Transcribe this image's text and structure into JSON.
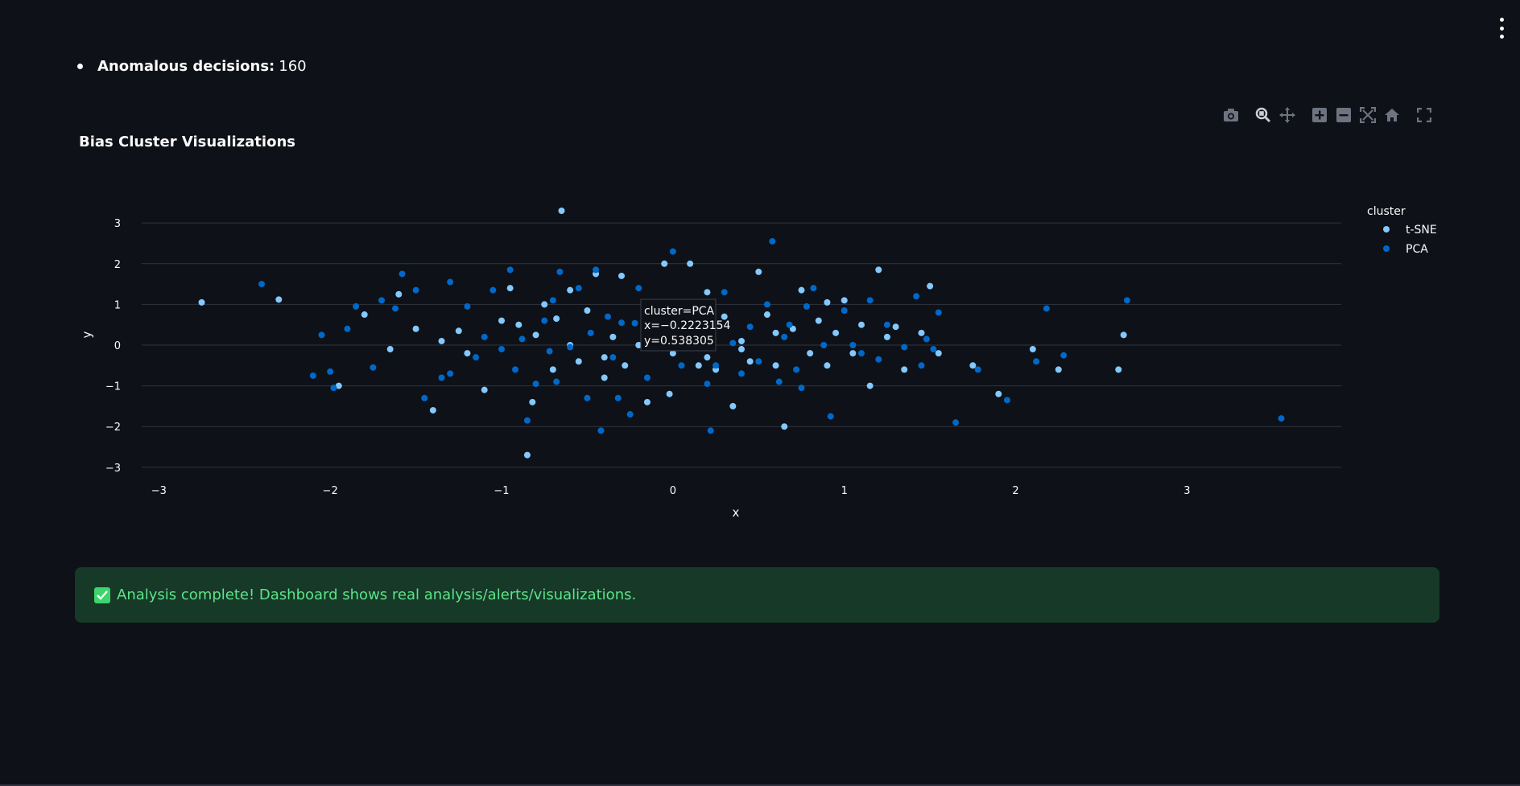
{
  "summary": {
    "label": "Anomalous decisions:",
    "value": "160"
  },
  "chart": {
    "title": "Bias Cluster Visualizations"
  },
  "modebar": {
    "icons": [
      "camera-icon",
      "zoom-icon",
      "pan-icon",
      "zoom-in-icon",
      "zoom-out-icon",
      "autoscale-icon",
      "home-icon",
      "fullscreen-icon"
    ]
  },
  "tooltip": {
    "line1": "cluster=PCA",
    "line2": "x=−0.2223154",
    "line3": "y=0.538305"
  },
  "success": {
    "icon": "check-icon",
    "text": "Analysis complete! Dashboard shows real analysis/alerts/visualizations."
  },
  "colors": {
    "background": "#0e1117",
    "tsne": "#83c9ff",
    "pca": "#0068c9",
    "success_bg": "#173928",
    "success_text": "#5ce488"
  },
  "chart_data": {
    "type": "scatter",
    "xlabel": "x",
    "ylabel": "y",
    "xlim": [
      -3.1,
      3.9
    ],
    "ylim": [
      -3.3,
      3.3
    ],
    "xticks": [
      -3,
      -2,
      -1,
      0,
      1,
      2,
      3
    ],
    "yticks": [
      -3,
      -2,
      -1,
      0,
      1,
      2,
      3
    ],
    "legend_title": "cluster",
    "legend_position": "top-right",
    "grid": true,
    "series": [
      {
        "name": "t-SNE",
        "color": "#83c9ff",
        "points": [
          [
            -2.75,
            1.05
          ],
          [
            -2.3,
            1.12
          ],
          [
            -1.95,
            -1.0
          ],
          [
            -1.8,
            0.75
          ],
          [
            -1.65,
            -0.1
          ],
          [
            -1.6,
            1.25
          ],
          [
            -1.4,
            -1.6
          ],
          [
            -1.35,
            0.1
          ],
          [
            -1.25,
            0.35
          ],
          [
            -1.1,
            -1.1
          ],
          [
            -1.0,
            0.6
          ],
          [
            -0.95,
            1.4
          ],
          [
            -0.9,
            0.5
          ],
          [
            -0.85,
            -2.7
          ],
          [
            -0.82,
            -1.4
          ],
          [
            -0.8,
            0.25
          ],
          [
            -0.75,
            1.0
          ],
          [
            -0.7,
            -0.6
          ],
          [
            -0.68,
            0.65
          ],
          [
            -0.65,
            3.3
          ],
          [
            -0.6,
            1.35
          ],
          [
            -0.55,
            -0.4
          ],
          [
            -0.5,
            0.85
          ],
          [
            -0.45,
            1.75
          ],
          [
            -0.4,
            -0.8
          ],
          [
            -0.35,
            0.2
          ],
          [
            -0.3,
            1.7
          ],
          [
            -0.28,
            -0.5
          ],
          [
            -0.2,
            0.0
          ],
          [
            -0.15,
            -1.4
          ],
          [
            -0.1,
            0.9
          ],
          [
            -0.05,
            2.0
          ],
          [
            -0.02,
            -1.2
          ],
          [
            0.05,
            0.3
          ],
          [
            0.1,
            2.0
          ],
          [
            0.15,
            -0.5
          ],
          [
            0.2,
            1.3
          ],
          [
            0.25,
            -0.6
          ],
          [
            0.3,
            0.7
          ],
          [
            0.35,
            -1.5
          ],
          [
            0.4,
            0.1
          ],
          [
            0.45,
            -0.4
          ],
          [
            0.5,
            1.8
          ],
          [
            0.55,
            0.75
          ],
          [
            0.6,
            -0.5
          ],
          [
            0.65,
            -2.0
          ],
          [
            0.7,
            0.4
          ],
          [
            0.75,
            1.35
          ],
          [
            0.8,
            -0.2
          ],
          [
            0.85,
            0.6
          ],
          [
            0.9,
            -0.5
          ],
          [
            0.95,
            0.3
          ],
          [
            1.0,
            1.1
          ],
          [
            1.05,
            -0.2
          ],
          [
            1.1,
            0.5
          ],
          [
            1.15,
            -1.0
          ],
          [
            1.2,
            1.85
          ],
          [
            1.25,
            0.2
          ],
          [
            1.3,
            0.45
          ],
          [
            1.35,
            -0.6
          ],
          [
            1.45,
            0.3
          ],
          [
            1.5,
            1.45
          ],
          [
            1.55,
            -0.2
          ],
          [
            1.75,
            -0.5
          ],
          [
            1.9,
            -1.2
          ],
          [
            2.1,
            -0.1
          ],
          [
            2.25,
            -0.6
          ],
          [
            2.6,
            -0.6
          ],
          [
            2.63,
            0.25
          ],
          [
            -1.5,
            0.4
          ],
          [
            -1.2,
            -0.2
          ],
          [
            -0.6,
            0.0
          ],
          [
            0.0,
            -0.2
          ],
          [
            0.4,
            -0.1
          ],
          [
            0.9,
            1.05
          ],
          [
            -0.4,
            -0.3
          ],
          [
            0.2,
            -0.3
          ],
          [
            0.6,
            0.3
          ]
        ]
      },
      {
        "name": "PCA",
        "color": "#0068c9",
        "points": [
          [
            -2.4,
            1.5
          ],
          [
            -2.05,
            0.25
          ],
          [
            -2.0,
            -0.65
          ],
          [
            -1.98,
            -1.05
          ],
          [
            -1.9,
            0.4
          ],
          [
            -1.85,
            0.95
          ],
          [
            -1.7,
            1.1
          ],
          [
            -1.62,
            0.9
          ],
          [
            -1.58,
            1.75
          ],
          [
            -1.5,
            1.35
          ],
          [
            -1.45,
            -1.3
          ],
          [
            -1.3,
            1.55
          ],
          [
            -1.3,
            -0.7
          ],
          [
            -1.2,
            0.95
          ],
          [
            -1.15,
            -0.3
          ],
          [
            -1.05,
            1.35
          ],
          [
            -1.0,
            -0.1
          ],
          [
            -0.95,
            1.85
          ],
          [
            -0.92,
            -0.6
          ],
          [
            -0.88,
            0.15
          ],
          [
            -0.8,
            -0.95
          ],
          [
            -0.75,
            0.6
          ],
          [
            -0.7,
            1.1
          ],
          [
            -0.68,
            -0.9
          ],
          [
            -0.66,
            1.8
          ],
          [
            -0.6,
            -0.05
          ],
          [
            -0.55,
            1.4
          ],
          [
            -0.5,
            -1.3
          ],
          [
            -0.48,
            0.3
          ],
          [
            -0.45,
            1.85
          ],
          [
            -0.42,
            -2.1
          ],
          [
            -0.38,
            0.7
          ],
          [
            -0.35,
            -0.3
          ],
          [
            -0.3,
            0.55
          ],
          [
            -0.25,
            -1.7
          ],
          [
            -0.2,
            1.4
          ],
          [
            -0.2223154,
            0.538305
          ],
          [
            -0.15,
            -0.8
          ],
          [
            -0.1,
            1.0
          ],
          [
            -0.05,
            0.2
          ],
          [
            0.0,
            2.3
          ],
          [
            0.05,
            -0.5
          ],
          [
            0.12,
            0.7
          ],
          [
            0.2,
            -0.95
          ],
          [
            0.22,
            -2.1
          ],
          [
            0.3,
            1.3
          ],
          [
            0.35,
            0.05
          ],
          [
            0.4,
            -0.7
          ],
          [
            0.45,
            0.45
          ],
          [
            0.5,
            -0.4
          ],
          [
            0.55,
            1.0
          ],
          [
            0.58,
            2.55
          ],
          [
            0.62,
            -0.9
          ],
          [
            0.68,
            0.5
          ],
          [
            0.72,
            -0.6
          ],
          [
            0.75,
            -1.05
          ],
          [
            0.82,
            1.4
          ],
          [
            0.88,
            0.0
          ],
          [
            0.92,
            -1.75
          ],
          [
            1.0,
            0.85
          ],
          [
            1.05,
            0.0
          ],
          [
            1.1,
            -0.2
          ],
          [
            1.15,
            1.1
          ],
          [
            1.25,
            0.5
          ],
          [
            1.35,
            -0.05
          ],
          [
            1.42,
            1.2
          ],
          [
            1.48,
            0.15
          ],
          [
            1.52,
            -0.1
          ],
          [
            1.55,
            0.8
          ],
          [
            1.65,
            -1.9
          ],
          [
            1.78,
            -0.6
          ],
          [
            1.95,
            -1.35
          ],
          [
            2.12,
            -0.4
          ],
          [
            2.18,
            0.9
          ],
          [
            2.28,
            -0.25
          ],
          [
            2.65,
            1.1
          ],
          [
            3.55,
            -1.8
          ],
          [
            -2.1,
            -0.75
          ],
          [
            -1.75,
            -0.55
          ],
          [
            -1.35,
            -0.8
          ],
          [
            -1.1,
            0.2
          ],
          [
            -0.85,
            -1.85
          ],
          [
            -0.72,
            -0.15
          ],
          [
            -0.32,
            -1.3
          ],
          [
            0.08,
            -0.05
          ],
          [
            0.25,
            -0.5
          ],
          [
            0.65,
            0.2
          ],
          [
            1.2,
            -0.35
          ],
          [
            1.45,
            -0.5
          ],
          [
            0.78,
            0.95
          ]
        ]
      }
    ]
  }
}
